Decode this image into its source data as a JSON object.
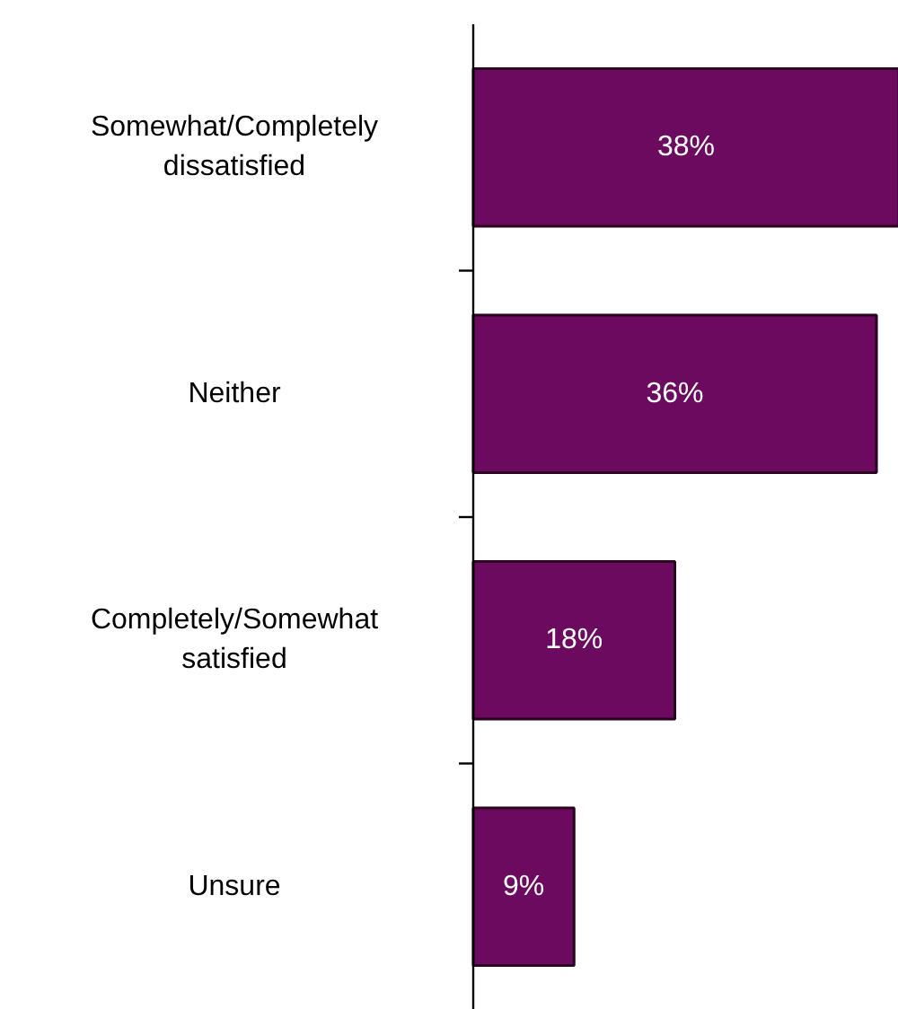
{
  "chart_data": {
    "type": "bar",
    "orientation": "horizontal",
    "categories": [
      "Somewhat/Completely\ndissatisfied",
      "Neither",
      "Completely/Somewhat\nsatisfied",
      "Unsure"
    ],
    "values": [
      38,
      36,
      18,
      9
    ],
    "value_labels": [
      "38%",
      "36%",
      "18%",
      "9%"
    ],
    "color": "#6b0a5e"
  }
}
